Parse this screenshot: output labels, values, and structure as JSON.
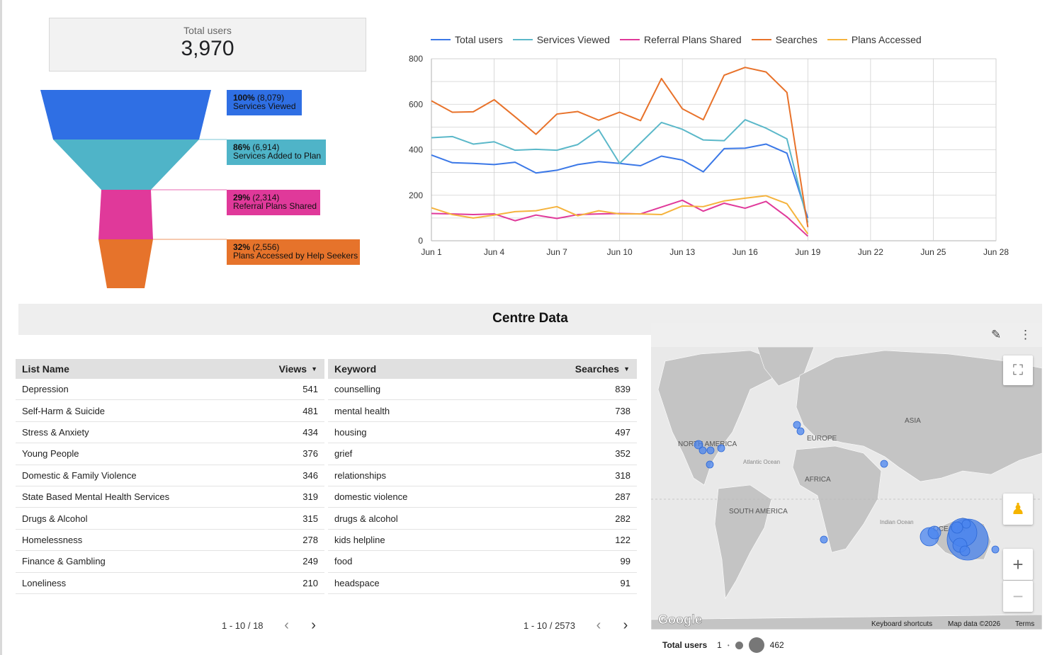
{
  "scorecard": {
    "label": "Total users",
    "value": "3,970"
  },
  "funnel": {
    "stages": [
      {
        "pct": "100%",
        "count": "(8,079)",
        "name": "Services Viewed",
        "color": "#2f6fe4"
      },
      {
        "pct": "86%",
        "count": "(6,914)",
        "name": "Services Added to Plan",
        "color": "#4fb4c8"
      },
      {
        "pct": "29%",
        "count": "(2,314)",
        "name": "Referral Plans Shared",
        "color": "#e0399a"
      },
      {
        "pct": "32%",
        "count": "(2,556)",
        "name": "Plans Accessed by Help Seekers",
        "color": "#e6732b"
      }
    ]
  },
  "chart_data": {
    "type": "line",
    "x": [
      "Jun 1",
      "Jun 2",
      "Jun 3",
      "Jun 4",
      "Jun 5",
      "Jun 6",
      "Jun 7",
      "Jun 8",
      "Jun 9",
      "Jun 10",
      "Jun 11",
      "Jun 12",
      "Jun 13",
      "Jun 14",
      "Jun 15",
      "Jun 16",
      "Jun 17",
      "Jun 18",
      "Jun 19"
    ],
    "xticks": [
      "Jun 1",
      "Jun 4",
      "Jun 7",
      "Jun 10",
      "Jun 13",
      "Jun 16",
      "Jun 19",
      "Jun 22",
      "Jun 25",
      "Jun 28"
    ],
    "xrange_days": [
      1,
      28
    ],
    "yticks": [
      0,
      200,
      400,
      600,
      800
    ],
    "ylim": [
      0,
      800
    ],
    "legend_position": "top",
    "series": [
      {
        "name": "Total users",
        "color": "#3b78e7",
        "values": [
          377,
          343,
          340,
          335,
          345,
          298,
          310,
          335,
          348,
          340,
          330,
          372,
          355,
          303,
          405,
          407,
          425,
          385,
          100
        ]
      },
      {
        "name": "Services Viewed",
        "color": "#5bb8c9",
        "values": [
          453,
          458,
          425,
          435,
          398,
          402,
          398,
          423,
          488,
          340,
          430,
          520,
          490,
          443,
          440,
          532,
          495,
          448,
          80
        ]
      },
      {
        "name": "Referral Plans Shared",
        "color": "#e0399a",
        "values": [
          120,
          118,
          115,
          118,
          88,
          113,
          98,
          115,
          118,
          120,
          118,
          148,
          178,
          130,
          165,
          143,
          173,
          105,
          20
        ]
      },
      {
        "name": "Searches",
        "color": "#e8722a",
        "values": [
          615,
          565,
          567,
          620,
          545,
          468,
          557,
          568,
          530,
          565,
          528,
          713,
          580,
          532,
          728,
          762,
          742,
          652,
          60
        ]
      },
      {
        "name": "Plans Accessed",
        "color": "#f5b33d",
        "values": [
          145,
          115,
          100,
          113,
          128,
          132,
          150,
          110,
          132,
          118,
          118,
          115,
          153,
          150,
          175,
          187,
          198,
          163,
          30
        ]
      }
    ]
  },
  "centre": {
    "title": "Centre Data"
  },
  "list_table": {
    "headers": [
      "List Name",
      "Views"
    ],
    "rows": [
      [
        "Depression",
        "541"
      ],
      [
        "Self-Harm & Suicide",
        "481"
      ],
      [
        "Stress & Anxiety",
        "434"
      ],
      [
        "Young People",
        "376"
      ],
      [
        "Domestic & Family Violence",
        "346"
      ],
      [
        "State Based Mental Health Services",
        "319"
      ],
      [
        "Drugs & Alcohol",
        "315"
      ],
      [
        "Homelessness",
        "278"
      ],
      [
        "Finance & Gambling",
        "249"
      ],
      [
        "Loneliness",
        "210"
      ]
    ],
    "pagination": "1 - 10 / 18"
  },
  "keyword_table": {
    "headers": [
      "Keyword",
      "Searches"
    ],
    "rows": [
      [
        "counselling",
        "839"
      ],
      [
        "mental health",
        "738"
      ],
      [
        "housing",
        "497"
      ],
      [
        "grief",
        "352"
      ],
      [
        "relationships",
        "318"
      ],
      [
        "domestic violence",
        "287"
      ],
      [
        "drugs & alcohol",
        "282"
      ],
      [
        "kids helpline",
        "122"
      ],
      [
        "food",
        "99"
      ],
      [
        "headspace",
        "91"
      ]
    ],
    "pagination": "1 - 10 / 2573"
  },
  "map": {
    "labels": {
      "asia": "ASIA",
      "europe": "EUROPE",
      "north_america": "NORTH AMERICA",
      "atlantic": "Atlantic Ocean",
      "africa": "AFRICA",
      "south_america": "SOUTH AMERICA",
      "indian": "Indian Ocean",
      "oceania": "OCEANIA"
    },
    "logo": "Google",
    "footer": {
      "shortcuts": "Keyboard shortcuts",
      "mapdata": "Map data ©2026",
      "terms": "Terms"
    },
    "legend": {
      "title": "Total users",
      "min": "1",
      "max": "462"
    },
    "icons": {
      "edit": "pencil-icon",
      "more": "more-vert-icon",
      "fullscreen": "fullscreen-icon",
      "pegman": "pegman-icon",
      "zoom_in": "plus-icon",
      "zoom_out": "minus-icon"
    },
    "bubble_color": "#4a84ef"
  }
}
